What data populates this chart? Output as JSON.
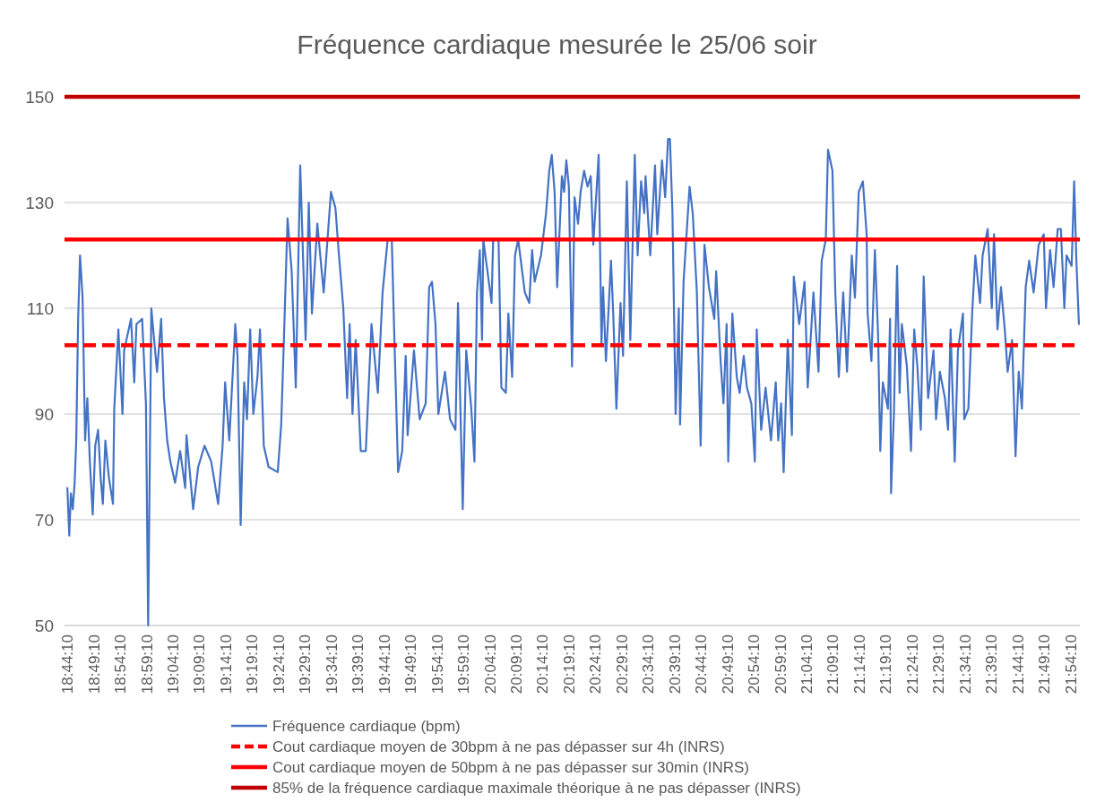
{
  "chart_data": {
    "type": "line",
    "title": "Fréquence cardiaque mesurée le 25/06 soir",
    "xlim": [
      18.727,
      21.932
    ],
    "ylim": [
      50,
      150
    ],
    "yticks": [
      50,
      70,
      90,
      110,
      130,
      150
    ],
    "xticks": [
      {
        "value": 18.7361,
        "label": "18:44:10"
      },
      {
        "value": 18.8194,
        "label": "18:49:10"
      },
      {
        "value": 18.9028,
        "label": "18:54:10"
      },
      {
        "value": 18.9861,
        "label": "18:59:10"
      },
      {
        "value": 19.0694,
        "label": "19:04:10"
      },
      {
        "value": 19.1528,
        "label": "19:09:10"
      },
      {
        "value": 19.2361,
        "label": "19:14:10"
      },
      {
        "value": 19.3194,
        "label": "19:19:10"
      },
      {
        "value": 19.4028,
        "label": "19:24:10"
      },
      {
        "value": 19.4861,
        "label": "19:29:10"
      },
      {
        "value": 19.5694,
        "label": "19:34:10"
      },
      {
        "value": 19.6528,
        "label": "19:39:10"
      },
      {
        "value": 19.7361,
        "label": "19:44:10"
      },
      {
        "value": 19.8194,
        "label": "19:49:10"
      },
      {
        "value": 19.9028,
        "label": "19:54:10"
      },
      {
        "value": 19.9861,
        "label": "19:59:10"
      },
      {
        "value": 20.0694,
        "label": "20:04:10"
      },
      {
        "value": 20.1528,
        "label": "20:09:10"
      },
      {
        "value": 20.2361,
        "label": "20:14:10"
      },
      {
        "value": 20.3194,
        "label": "20:19:10"
      },
      {
        "value": 20.4028,
        "label": "20:24:10"
      },
      {
        "value": 20.4861,
        "label": "20:29:10"
      },
      {
        "value": 20.5694,
        "label": "20:34:10"
      },
      {
        "value": 20.6528,
        "label": "20:39:10"
      },
      {
        "value": 20.7361,
        "label": "20:44:10"
      },
      {
        "value": 20.8194,
        "label": "20:49:10"
      },
      {
        "value": 20.9028,
        "label": "20:54:10"
      },
      {
        "value": 20.9861,
        "label": "20:59:10"
      },
      {
        "value": 21.0694,
        "label": "21:04:10"
      },
      {
        "value": 21.1528,
        "label": "21:09:10"
      },
      {
        "value": 21.2361,
        "label": "21:14:10"
      },
      {
        "value": 21.3194,
        "label": "21:19:10"
      },
      {
        "value": 21.4028,
        "label": "21:24:10"
      },
      {
        "value": 21.4861,
        "label": "21:29:10"
      },
      {
        "value": 21.5694,
        "label": "21:34:10"
      },
      {
        "value": 21.6528,
        "label": "21:39:10"
      },
      {
        "value": 21.7361,
        "label": "21:44:10"
      },
      {
        "value": 21.8194,
        "label": "21:49:10"
      },
      {
        "value": 21.9028,
        "label": "21:54:10"
      }
    ],
    "grid": "y",
    "legend": "bottom",
    "ref_lines": [
      {
        "axis": "y",
        "value": 103,
        "label": "Cout cardiaque moyen de 30bpm à ne pas dépasser sur 4h (INRS)",
        "color": "#ff0000",
        "line_style": "dashed"
      },
      {
        "axis": "y",
        "value": 123,
        "label": "Cout cardiaque moyen de 50bpm à ne pas dépasser sur 30min (INRS)",
        "color": "#ff0000",
        "line_style": "solid"
      },
      {
        "axis": "y",
        "value": 150,
        "label": "85% de la fréquence cardiaque maximale théorique à ne pas dépasser (INRS)",
        "color": "#c00000",
        "line_style": "solid"
      }
    ],
    "series": [
      {
        "name": "Fréquence cardiaque (bpm)",
        "color": "#4472c4",
        "x": [
          18.736,
          18.742,
          18.747,
          18.753,
          18.759,
          18.764,
          18.77,
          18.776,
          18.784,
          18.792,
          18.799,
          18.807,
          18.816,
          18.824,
          18.833,
          18.841,
          18.848,
          18.856,
          18.867,
          18.88,
          18.884,
          18.897,
          18.91,
          18.915,
          18.937,
          18.947,
          18.954,
          18.972,
          18.984,
          18.991,
          19.001,
          19.019,
          19.032,
          19.041,
          19.051,
          19.061,
          19.076,
          19.092,
          19.108,
          19.112,
          19.133,
          19.149,
          19.169,
          19.19,
          19.212,
          19.226,
          19.234,
          19.247,
          19.266,
          19.273,
          19.283,
          19.294,
          19.303,
          19.313,
          19.323,
          19.336,
          19.344,
          19.356,
          19.371,
          19.4,
          19.411,
          19.421,
          19.431,
          19.444,
          19.457,
          19.471,
          19.488,
          19.498,
          19.508,
          19.525,
          19.545,
          19.568,
          19.582,
          19.592,
          19.607,
          19.619,
          19.627,
          19.636,
          19.646,
          19.662,
          19.678,
          19.696,
          19.716,
          19.731,
          19.747,
          19.76,
          19.767,
          19.78,
          19.793,
          19.804,
          19.81,
          19.83,
          19.848,
          19.867,
          19.878,
          19.887,
          19.898,
          19.907,
          19.928,
          19.944,
          19.961,
          19.969,
          19.984,
          19.995,
          20.011,
          20.021,
          20.029,
          20.038,
          20.045,
          20.049,
          20.075,
          20.08,
          20.097,
          20.106,
          20.12,
          20.128,
          20.14,
          20.149,
          20.159,
          20.18,
          20.194,
          20.203,
          20.211,
          20.231,
          20.247,
          20.257,
          20.265,
          20.274,
          20.282,
          20.297,
          20.304,
          20.311,
          20.319,
          20.329,
          20.337,
          20.348,
          20.356,
          20.367,
          20.378,
          20.388,
          20.396,
          20.413,
          20.422,
          20.427,
          20.436,
          20.452,
          20.459,
          20.469,
          20.482,
          20.49,
          20.502,
          20.513,
          20.527,
          20.536,
          20.547,
          20.557,
          20.561,
          20.576,
          20.591,
          20.598,
          20.613,
          20.623,
          20.632,
          20.638,
          20.646,
          20.656,
          20.666,
          20.67,
          20.681,
          20.7,
          20.71,
          20.723,
          20.735,
          20.747,
          20.761,
          20.778,
          20.784,
          20.798,
          20.807,
          20.817,
          20.822,
          20.835,
          20.849,
          20.858,
          20.871,
          20.881,
          20.895,
          20.906,
          20.912,
          20.926,
          20.94,
          20.957,
          20.972,
          20.98,
          20.989,
          20.997,
          21.01,
          21.023,
          21.029,
          21.046,
          21.063,
          21.073,
          21.091,
          21.107,
          21.117,
          21.13,
          21.137,
          21.151,
          21.16,
          21.171,
          21.185,
          21.197,
          21.212,
          21.222,
          21.234,
          21.247,
          21.259,
          21.262,
          21.274,
          21.285,
          21.295,
          21.302,
          21.31,
          21.326,
          21.333,
          21.336,
          21.345,
          21.355,
          21.363,
          21.37,
          21.386,
          21.399,
          21.409,
          21.419,
          21.43,
          21.439,
          21.453,
          21.47,
          21.478,
          21.49,
          21.506,
          21.516,
          21.524,
          21.537,
          21.547,
          21.563,
          21.567,
          21.58,
          21.592,
          21.602,
          21.617,
          21.625,
          21.641,
          21.654,
          21.661,
          21.672,
          21.683,
          21.695,
          21.704,
          21.718,
          21.729,
          21.739,
          21.749,
          21.761,
          21.772,
          21.786,
          21.802,
          21.818,
          21.825,
          21.838,
          21.849,
          21.862,
          21.872,
          21.883,
          21.89,
          21.906,
          21.914,
          21.921,
          21.929
        ],
        "values": [
          76,
          67,
          75,
          72,
          77,
          85,
          108,
          120,
          112,
          85,
          93,
          81,
          71,
          84,
          87,
          78,
          73,
          85,
          78,
          73,
          91,
          106,
          90,
          102,
          108,
          96,
          107,
          108,
          92,
          50,
          110,
          98,
          108,
          93,
          85,
          81,
          77,
          83,
          76,
          86,
          72,
          80,
          84,
          81,
          73,
          84,
          96,
          85,
          107,
          101,
          69,
          96,
          89,
          106,
          90,
          97,
          106,
          84,
          80,
          79,
          88,
          107,
          127,
          117,
          95,
          137,
          104,
          130,
          109,
          126,
          113,
          132,
          129,
          121,
          110,
          93,
          107,
          90,
          104,
          83,
          83,
          107,
          94,
          113,
          123,
          123,
          107,
          79,
          83,
          101,
          86,
          102,
          89,
          92,
          114,
          115,
          107,
          90,
          98,
          89,
          87,
          111,
          72,
          102,
          91,
          81,
          113,
          121,
          104,
          123,
          111,
          123,
          123,
          95,
          94,
          109,
          97,
          120,
          123,
          113,
          111,
          121,
          115,
          120,
          128,
          136,
          139,
          132,
          114,
          135,
          132,
          138,
          133,
          99,
          131,
          126,
          132,
          136,
          133,
          135,
          122,
          139,
          103,
          114,
          100,
          119,
          109,
          91,
          111,
          101,
          134,
          104,
          139,
          120,
          134,
          128,
          135,
          120,
          137,
          124,
          138,
          131,
          142,
          142,
          128,
          90,
          110,
          88,
          115,
          133,
          128,
          113,
          84,
          122,
          114,
          108,
          117,
          100,
          92,
          107,
          81,
          109,
          97,
          94,
          101,
          95,
          92,
          81,
          106,
          87,
          95,
          85,
          96,
          85,
          92,
          79,
          104,
          86,
          116,
          107,
          115,
          95,
          113,
          98,
          119,
          123,
          140,
          136,
          113,
          97,
          113,
          98,
          120,
          112,
          132,
          134,
          124,
          109,
          100,
          121,
          105,
          83,
          96,
          91,
          108,
          75,
          90,
          118,
          94,
          107,
          99,
          83,
          106,
          99,
          87,
          116,
          93,
          102,
          89,
          98,
          93,
          87,
          106,
          81,
          102,
          109,
          89,
          91,
          109,
          120,
          111,
          120,
          125,
          110,
          124,
          106,
          114,
          106,
          98,
          104,
          82,
          98,
          91,
          114,
          119,
          113,
          122,
          124,
          110,
          121,
          114,
          125,
          125,
          110,
          120,
          118,
          134,
          119,
          107
        ]
      }
    ]
  }
}
